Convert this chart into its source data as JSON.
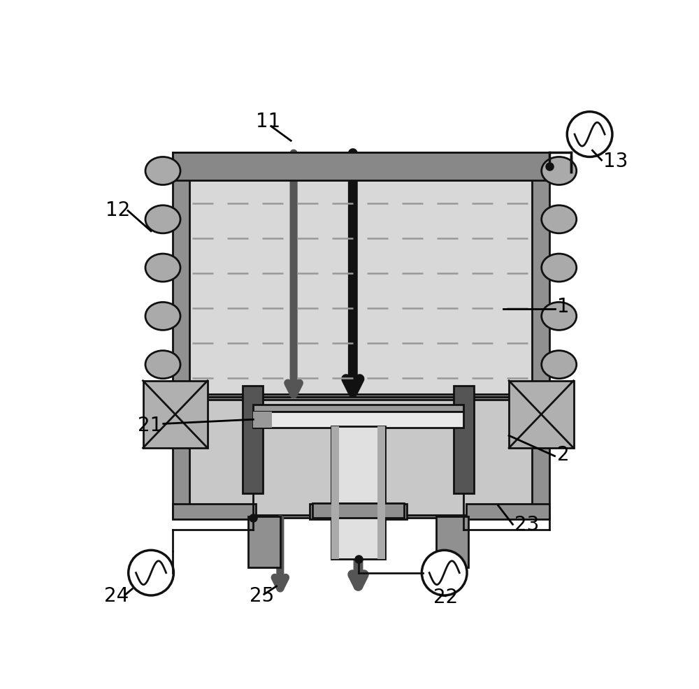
{
  "bg_color": "#ffffff",
  "wall_color": "#909090",
  "wall_dark": "#6a6a6a",
  "inner_color": "#c8c8c8",
  "inner_light": "#d8d8d8",
  "top_bar_color": "#888888",
  "coil_face": "#aaaaaa",
  "coil_edge": "#111111",
  "electrode_color": "#555555",
  "sample_light": "#e8e8e8",
  "sample_mid": "#cccccc",
  "sample_dark": "#999999",
  "pedestal_light": "#e0e0e0",
  "pedestal_dark": "#aaaaaa",
  "magnet_fill": "#b0b0b0",
  "arrow_gray": "#555555",
  "arrow_black": "#111111",
  "line_color": "#111111",
  "dashed_color": "#999999",
  "label_fontsize": 20
}
